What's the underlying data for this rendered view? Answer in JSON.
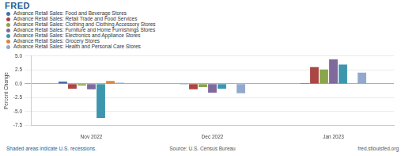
{
  "chart_data": {
    "type": "bar",
    "logo": "FRED",
    "y_label": "Percent Change",
    "categories": [
      "Nov 2022",
      "Dec 2022",
      "Jan 2023"
    ],
    "series": [
      {
        "name": "Advance Retail Sales: Food and Beverage Stores",
        "color": "#4572a7",
        "values": [
          0.4,
          -0.1,
          0.1
        ]
      },
      {
        "name": "Advance Retail Sales: Retail Trade and Food Services",
        "color": "#aa4643",
        "values": [
          -0.9,
          -1.0,
          3.0
        ]
      },
      {
        "name": "Advance Retail Sales: Clothing and Clothing Accessory Stores",
        "color": "#89a54e",
        "values": [
          -0.3,
          -0.6,
          2.6
        ]
      },
      {
        "name": "Advance Retail Sales: Furniture and Home Furnishings Stores",
        "color": "#80699b",
        "values": [
          -1.0,
          -1.6,
          4.4
        ]
      },
      {
        "name": "Advance Retail Sales: Electronics and Appliance Stores",
        "color": "#3d96ae",
        "values": [
          -6.2,
          -0.9,
          3.5
        ]
      },
      {
        "name": "Advance Retail Sales: Grocery Stores",
        "color": "#db843d",
        "values": [
          0.5,
          0.0,
          0.0
        ]
      },
      {
        "name": "Advance Retail Sales: Health and Personal Care Stores",
        "color": "#92a8cd",
        "values": [
          0.2,
          -1.7,
          2.0
        ]
      }
    ],
    "ylim": [
      -7.5,
      5.0
    ],
    "yticks": [
      -7.5,
      {
        "value": -5.0,
        "label": "-5.0"
      },
      -2.5,
      {
        "value": 0,
        "label": "0.0"
      },
      2.5,
      {
        "value": 5.0,
        "label": "5.0"
      }
    ],
    "grid": true,
    "legend": "upper left",
    "annotations": [
      "Shaded areas indicate U.S. recessions.",
      "Source: U.S. Census Bureau",
      "fred.stlouisfed.org"
    ]
  }
}
